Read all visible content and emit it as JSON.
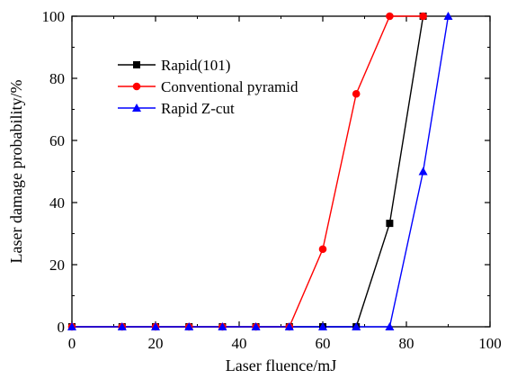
{
  "chart_data": {
    "type": "line",
    "title": "",
    "xlabel": "Laser fluence/mJ",
    "ylabel": "Laser damage probability/%",
    "xlim": [
      0,
      100
    ],
    "ylim": [
      0,
      100
    ],
    "xticks": [
      0,
      20,
      40,
      60,
      80,
      100
    ],
    "yticks": [
      0,
      20,
      40,
      60,
      80,
      100
    ],
    "grid": false,
    "legend_position": "top-left",
    "series": [
      {
        "name": "Rapid(101)",
        "color": "#000000",
        "marker": "square",
        "x": [
          0,
          12,
          20,
          28,
          36,
          44,
          52,
          60,
          68,
          76,
          84
        ],
        "y": [
          0,
          0,
          0,
          0,
          0,
          0,
          0,
          0,
          0,
          33.3,
          100
        ]
      },
      {
        "name": "Conventional pyramid",
        "color": "#ff0000",
        "marker": "circle",
        "x": [
          0,
          12,
          20,
          28,
          36,
          44,
          52,
          60,
          68,
          76,
          84
        ],
        "y": [
          0,
          0,
          0,
          0,
          0,
          0,
          0,
          25,
          75,
          100,
          100
        ]
      },
      {
        "name": "Rapid Z-cut",
        "color": "#0000ff",
        "marker": "triangle",
        "x": [
          0,
          12,
          20,
          28,
          36,
          44,
          52,
          60,
          68,
          76,
          84,
          90
        ],
        "y": [
          0,
          0,
          0,
          0,
          0,
          0,
          0,
          0,
          0,
          0,
          50,
          100
        ]
      }
    ]
  }
}
